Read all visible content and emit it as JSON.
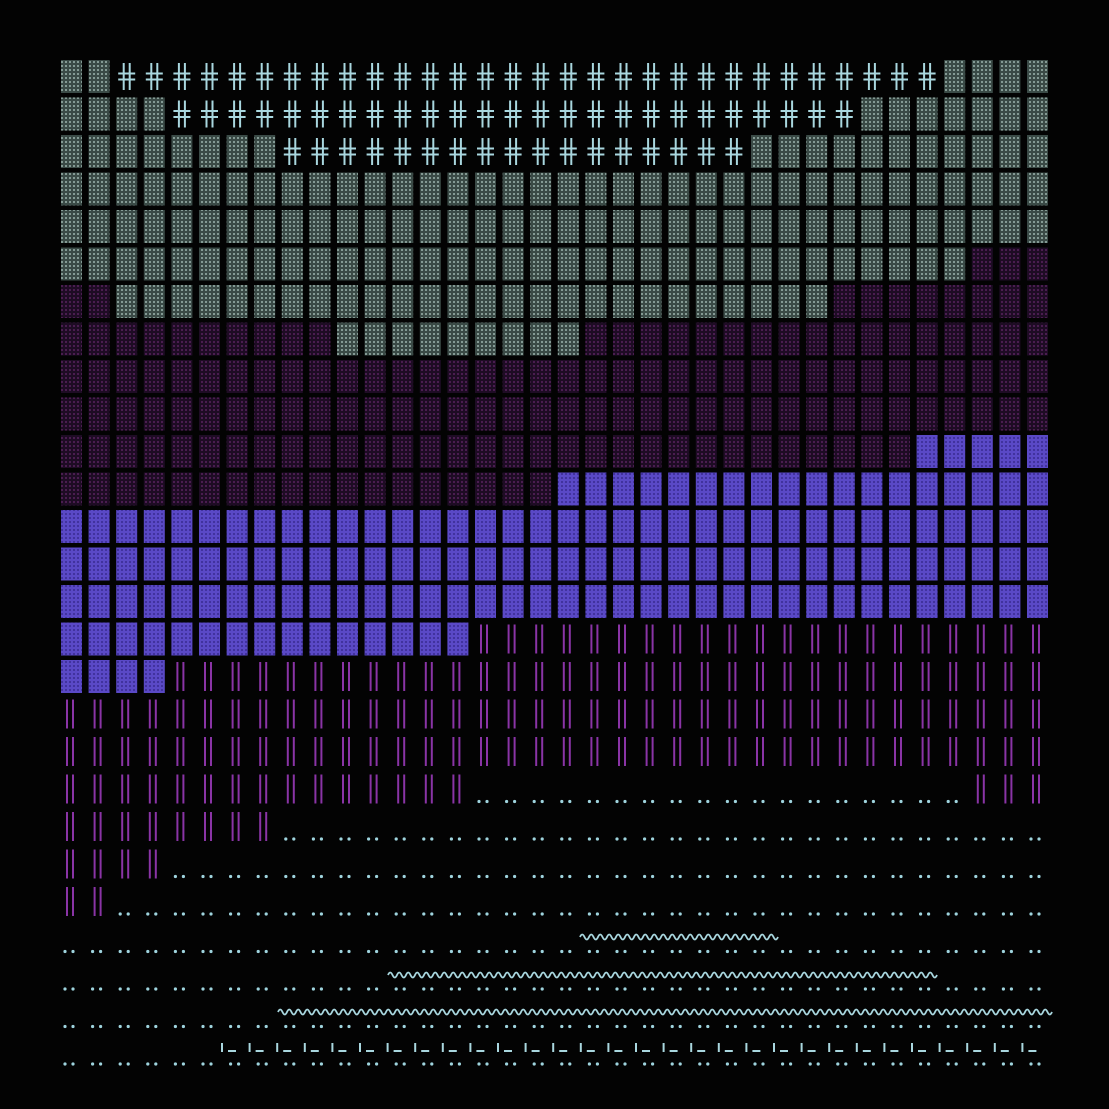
{
  "artwork": {
    "grid": {
      "cols": 36,
      "rows": 27
    },
    "palette": {
      "background": "#030303",
      "cross": "#a9d7df",
      "dot_cell_fill": "#3a4a46",
      "dot_cell_dots": "#b9d3cc",
      "dark_cell_fill": "#24102a",
      "dark_cell_dots": "#7a2f80",
      "blue_cell_fill": "#5a49c6",
      "blue_cell_dots": "#2b1f7c",
      "bars": "#8a34a6",
      "colon_dots": "#9fd4de",
      "wave": "#a9d7df"
    },
    "bands": [
      {
        "pattern": "cross",
        "starts": [
          2,
          4,
          8
        ],
        "ends": [
          32,
          29,
          25
        ]
      },
      {
        "pattern": "dot_cell",
        "region": "upper"
      },
      {
        "pattern": "dark_cell",
        "region": "middle"
      },
      {
        "pattern": "blue_cell",
        "region": "lower-middle"
      },
      {
        "pattern": "bars",
        "region": "lower"
      },
      {
        "pattern": "colon_dots",
        "region": "bottom"
      },
      {
        "pattern": "wave",
        "region": "bottom"
      }
    ],
    "wave_glyph": "'~'",
    "bottom_glyph": "'_'"
  }
}
